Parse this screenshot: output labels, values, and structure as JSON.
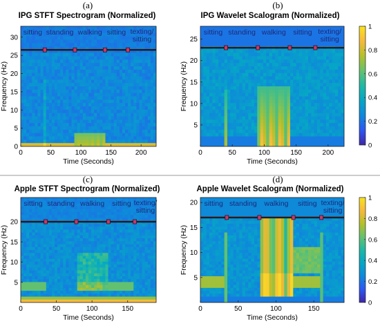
{
  "colorbar_ticks": [
    "0",
    "0.2",
    "0.4",
    "0.6",
    "0.8",
    "1"
  ],
  "colormap": [
    "#3e26a8",
    "#2d57f2",
    "#0f88db",
    "#06a6c6",
    "#1fb9a6",
    "#65c16e",
    "#b4c02b",
    "#f6b93d",
    "#f9e31f"
  ],
  "chart_data": [
    {
      "type": "heatmap",
      "panel": "(a)",
      "title": "IPG STFT Spectrogram (Normalized)",
      "xlabel": "Time (Seconds)",
      "ylabel": "Frequency (Hz)",
      "xlim": [
        0,
        225
      ],
      "ylim": [
        0,
        33
      ],
      "xticks": [
        0,
        50,
        100,
        150,
        200
      ],
      "yticks": [
        0,
        5,
        10,
        15,
        20,
        25,
        30
      ],
      "activities": [
        "sitting",
        "standing",
        "walking",
        "sitting",
        "texting/ sitting"
      ],
      "boundaries": [
        40,
        90,
        140,
        178
      ],
      "divider_y": 26.5
    },
    {
      "type": "heatmap",
      "panel": "(b)",
      "title": "IPG Wavelet Scalogram (Normalized)",
      "xlabel": "Time (Seconds)",
      "ylabel": "Frequency (Hz)",
      "xlim": [
        0,
        225
      ],
      "ylim": [
        0,
        28
      ],
      "xticks": [
        0,
        50,
        100,
        150,
        200
      ],
      "yticks": [
        5,
        10,
        15,
        20,
        25
      ],
      "activities": [
        "sitting",
        "standing",
        "walking",
        "sitting",
        "texting/ sitting"
      ],
      "boundaries": [
        40,
        90,
        140,
        180
      ],
      "divider_y": 23,
      "colorbar": true
    },
    {
      "type": "heatmap",
      "panel": "(c)",
      "title": "Apple STFT Spectrogram (Normalized)",
      "xlabel": "Time (Seconds)",
      "ylabel": "Frequency (Hz)",
      "xlim": [
        0,
        190
      ],
      "ylim": [
        0,
        26
      ],
      "xticks": [
        0,
        50,
        100,
        150
      ],
      "yticks": [
        5,
        10,
        15,
        20
      ],
      "activities": [
        "sitting",
        "standing",
        "walking",
        "sitting",
        "texting/ sitting"
      ],
      "boundaries": [
        35,
        78,
        123,
        160
      ],
      "divider_y": 20
    },
    {
      "type": "heatmap",
      "panel": "(d)",
      "title": "Apple Wavelet Scalogram (Normalized)",
      "xlabel": "Time (Seconds)",
      "ylabel": "Frequency (Hz)",
      "xlim": [
        0,
        190
      ],
      "ylim": [
        0,
        21
      ],
      "xticks": [
        0,
        50,
        100,
        150
      ],
      "yticks": [
        5,
        10,
        15,
        20
      ],
      "activities": [
        "sitting",
        "standing",
        "walking",
        "sitting",
        "texting/ sitting"
      ],
      "boundaries": [
        35,
        78,
        123,
        160
      ],
      "divider_y": 17,
      "colorbar": true
    }
  ]
}
